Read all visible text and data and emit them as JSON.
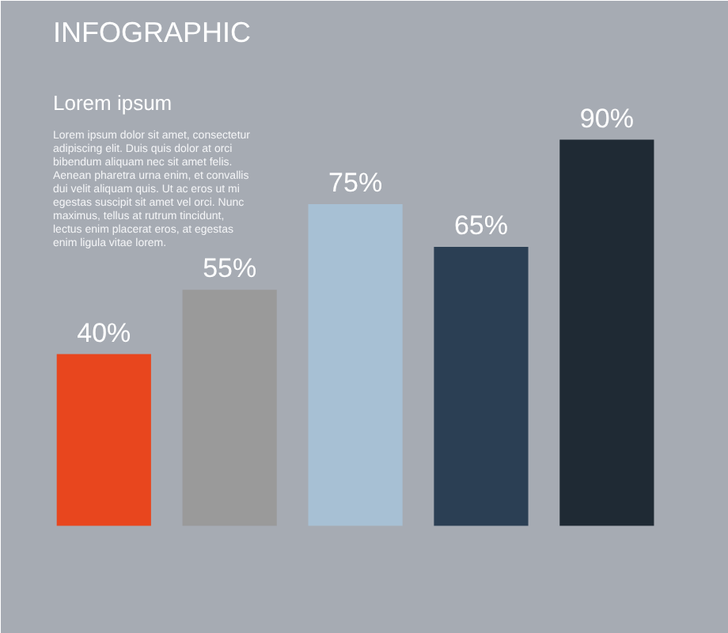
{
  "chart_data": {
    "type": "bar",
    "title": "INFOGRAPHIC",
    "subtitle": "Lorem ipsum",
    "annotations": [
      "Lorem ipsum dolor sit amet, consectetur adipiscing elit. Duis quis dolor at orci bibendum aliquam nec sit amet felis. Aenean pharetra urna enim, et convallis dui velit aliquam quis. Ut ac eros ut mi egestas suscipit sit amet vel orci. Nunc maximus, tellus at rutrum tincidunt, lectus enim placerat eros, at egestas enim ligula vitae lorem."
    ],
    "categories": [
      null,
      null,
      null,
      null,
      null
    ],
    "values": [
      40,
      55,
      75,
      65,
      90
    ],
    "colors": [
      "#e8461e",
      "#9a9a9a",
      "#a7c0d4",
      "#2b3f54",
      "#1f2a34"
    ],
    "value_labels": [
      "40%",
      "55%",
      "75%",
      "65%",
      "90%"
    ]
  }
}
